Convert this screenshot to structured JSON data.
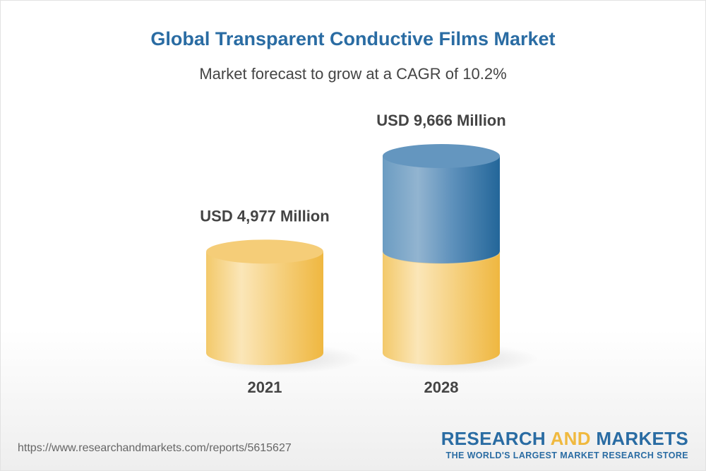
{
  "chart_data": {
    "type": "bar",
    "style": "3d-cylinder",
    "title": "Global Transparent Conductive Films Market",
    "subtitle": "Market forecast to grow at a CAGR of 10.2%",
    "categories": [
      "2021",
      "2028"
    ],
    "values": [
      4977,
      9666
    ],
    "data_labels": [
      "USD 4,977 Million",
      "USD 9,666 Million"
    ],
    "unit": "USD Million",
    "colors": {
      "base": "#f2c14e",
      "growth": "#2a6ca3"
    }
  },
  "footer": {
    "url": "https://www.researchandmarkets.com/reports/5615627",
    "logo_line1_a": "RESEARCH ",
    "logo_line1_b": "AND",
    "logo_line1_c": " MARKETS",
    "logo_line2": "THE WORLD'S LARGEST MARKET RESEARCH STORE"
  }
}
